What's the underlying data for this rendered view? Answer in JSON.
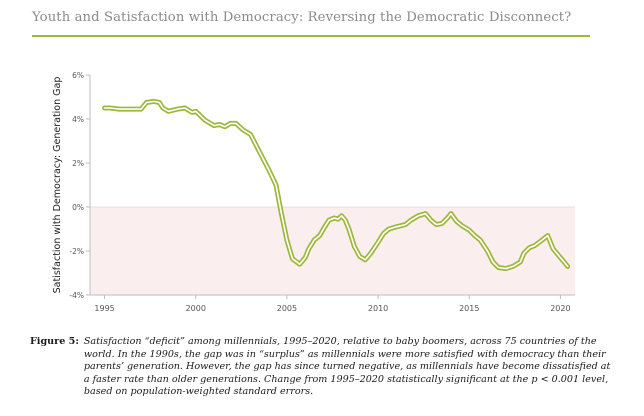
{
  "header": {
    "title": "Youth and Satisfaction with Democracy: Reversing the Democratic Disconnect?",
    "rule_color": "#9cb83a"
  },
  "caption": {
    "label": "Figure 5:",
    "text": "Satisfaction “deficit” among millennials, 1995–2020, relative to baby boomers, across 75 countries of the world. In the 1990s, the gap was in “surplus” as millennials were more satisfied with democracy than their parents’ generation. However, the gap has since turned negative, as millennials have become dissatisfied at a faster rate than older generations. Change from 1995–2020 statistically significant at the p < 0.001 level, based on population-weighted standard errors."
  },
  "chart_data": {
    "type": "line",
    "ylabel": "Satisfaction with Democracy: Generation Gap",
    "xlabel": "",
    "xlim": [
      1994.2,
      2020.8
    ],
    "ylim": [
      -4,
      6
    ],
    "x_ticks": [
      1995,
      2000,
      2005,
      2010,
      2015,
      2020
    ],
    "y_ticks": [
      6,
      4,
      2,
      0,
      -2,
      -4
    ],
    "x_tick_labels": [
      "1995",
      "2000",
      "2005",
      "2010",
      "2015",
      "2020"
    ],
    "y_tick_labels": [
      "6%",
      "4%",
      "2%",
      "0%",
      "-2%",
      "-4%"
    ],
    "negative_shade_color": "#fbeeee",
    "line_color": "#9cb83a",
    "series": [
      {
        "x": [
          1995.0,
          1995.3,
          1995.8,
          1996.5,
          1997.0,
          1997.3,
          1997.7,
          1998.0,
          1998.2,
          1998.5,
          1999.0,
          1999.4,
          1999.8,
          2000.0,
          2000.5,
          2001.0,
          2001.3,
          2001.6,
          2001.9,
          2002.2,
          2002.6,
          2003.0,
          2003.5,
          2004.0,
          2004.4,
          2004.7,
          2005.0,
          2005.3,
          2005.7,
          2006.0,
          2006.2,
          2006.5,
          2006.8,
          2007.0,
          2007.3,
          2007.6,
          2007.8,
          2008.0,
          2008.2,
          2008.4,
          2008.7,
          2009.0,
          2009.3,
          2009.6,
          2010.0,
          2010.3,
          2010.6,
          2011.0,
          2011.5,
          2011.8,
          2012.2,
          2012.6,
          2012.9,
          2013.2,
          2013.5,
          2013.8,
          2014.0,
          2014.3,
          2014.6,
          2015.0,
          2015.3,
          2015.6,
          2016.0,
          2016.3,
          2016.6,
          2017.0,
          2017.4,
          2017.8,
          2018.0,
          2018.3,
          2018.6,
          2019.0,
          2019.3,
          2019.6,
          2020.0,
          2020.2,
          2020.4
        ],
        "y": [
          4.5,
          4.5,
          4.45,
          4.45,
          4.45,
          4.75,
          4.8,
          4.75,
          4.5,
          4.35,
          4.45,
          4.5,
          4.3,
          4.35,
          3.95,
          3.7,
          3.75,
          3.65,
          3.8,
          3.8,
          3.5,
          3.3,
          2.5,
          1.7,
          1.0,
          -0.3,
          -1.5,
          -2.35,
          -2.6,
          -2.3,
          -1.9,
          -1.5,
          -1.3,
          -1.0,
          -0.6,
          -0.5,
          -0.55,
          -0.4,
          -0.6,
          -1.0,
          -1.8,
          -2.25,
          -2.4,
          -2.1,
          -1.6,
          -1.2,
          -1.0,
          -0.9,
          -0.8,
          -0.6,
          -0.4,
          -0.3,
          -0.6,
          -0.8,
          -0.75,
          -0.5,
          -0.3,
          -0.65,
          -0.85,
          -1.05,
          -1.3,
          -1.5,
          -2.0,
          -2.5,
          -2.75,
          -2.8,
          -2.7,
          -2.5,
          -2.1,
          -1.85,
          -1.75,
          -1.5,
          -1.3,
          -1.9,
          -2.3,
          -2.5,
          -2.7
        ]
      }
    ]
  }
}
